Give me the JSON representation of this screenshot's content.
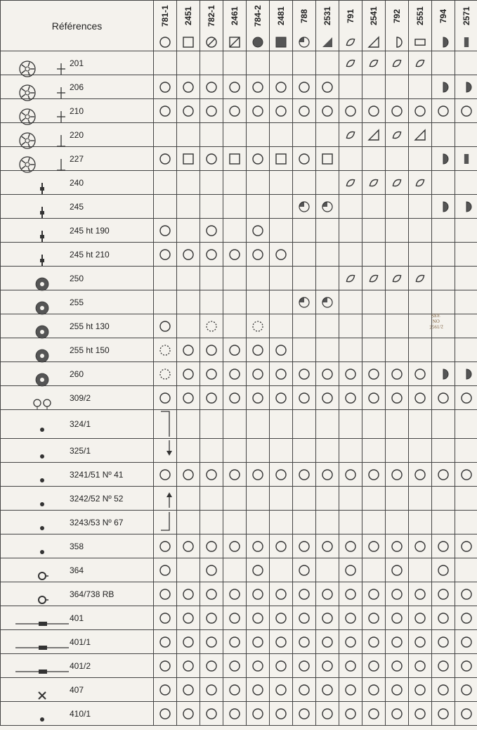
{
  "header_title": "Références",
  "bg_color": "#f4f2ed",
  "stroke_color": "#333333",
  "fill_dark": "#555555",
  "calibers": [
    "781-1",
    "2451",
    "782-1",
    "2461",
    "784-2",
    "2481",
    "788",
    "2531",
    "791",
    "2541",
    "792",
    "2551",
    "794",
    "2571"
  ],
  "header_symbols": [
    "circle",
    "square",
    "circle-slash",
    "square-slash",
    "circle-fill",
    "square-fill",
    "pie-dark",
    "tri-dark",
    "leaf",
    "tri-open",
    "half-open",
    "rect-open",
    "half-dark",
    "bar-dark"
  ],
  "rows": [
    {
      "ref": "201",
      "icon": "wheel-pin",
      "cells": [
        "",
        "",
        "",
        "",
        "",
        "",
        "",
        "",
        "leaf",
        "leaf",
        "leaf",
        "leaf",
        "",
        ""
      ]
    },
    {
      "ref": "206",
      "icon": "wheel-pin",
      "cells": [
        "circle",
        "circle",
        "circle",
        "circle",
        "circle",
        "circle",
        "circle",
        "circle",
        "",
        "",
        "",
        "",
        "half-dark",
        "half-dark"
      ]
    },
    {
      "ref": "210",
      "icon": "wheel-pin",
      "cells": [
        "circle",
        "circle",
        "circle",
        "circle",
        "circle",
        "circle",
        "circle",
        "circle",
        "circle",
        "circle",
        "circle",
        "circle",
        "circle",
        "circle"
      ]
    },
    {
      "ref": "220",
      "icon": "wheel-post",
      "cells": [
        "",
        "",
        "",
        "",
        "",
        "",
        "",
        "",
        "leaf",
        "tri-open",
        "leaf",
        "tri-open",
        "",
        ""
      ]
    },
    {
      "ref": "227",
      "icon": "wheel-post",
      "cells": [
        "circle",
        "square",
        "circle",
        "square",
        "circle",
        "square",
        "circle",
        "square",
        "",
        "",
        "",
        "",
        "half-dark",
        "bar-dark"
      ]
    },
    {
      "ref": "240",
      "icon": "stem",
      "cells": [
        "",
        "",
        "",
        "",
        "",
        "",
        "",
        "",
        "leaf",
        "leaf",
        "leaf",
        "leaf",
        "",
        ""
      ]
    },
    {
      "ref": "245",
      "icon": "stem",
      "cells": [
        "",
        "",
        "",
        "",
        "",
        "",
        "pie-dark",
        "pie-dark",
        "",
        "",
        "",
        "",
        "half-dark",
        "half-dark"
      ]
    },
    {
      "ref": "245 ht 190",
      "icon": "stem",
      "cells": [
        "circle",
        "",
        "circle",
        "",
        "circle",
        "",
        "",
        "",
        "",
        "",
        "",
        "",
        "",
        ""
      ]
    },
    {
      "ref": "245 ht 210",
      "icon": "stem",
      "cells": [
        "circle",
        "circle",
        "circle",
        "circle",
        "circle",
        "circle",
        "",
        "",
        "",
        "",
        "",
        "",
        "",
        ""
      ]
    },
    {
      "ref": "250",
      "icon": "gear",
      "cells": [
        "",
        "",
        "",
        "",
        "",
        "",
        "",
        "",
        "leaf",
        "leaf",
        "leaf",
        "leaf",
        "",
        ""
      ]
    },
    {
      "ref": "255",
      "icon": "gear",
      "cells": [
        "",
        "",
        "",
        "",
        "",
        "",
        "pie-dark",
        "pie-dark",
        "",
        "",
        "",
        "",
        "",
        ""
      ]
    },
    {
      "ref": "255 ht 130",
      "icon": "gear",
      "cells": [
        "circle",
        "",
        "circle-dash",
        "",
        "circle-dash",
        "",
        "",
        "",
        "",
        "",
        "",
        "",
        "",
        ""
      ]
    },
    {
      "ref": "255 ht 150",
      "icon": "gear",
      "cells": [
        "circle-dash",
        "circle",
        "circle",
        "circle",
        "circle",
        "circle",
        "",
        "",
        "",
        "",
        "",
        "",
        "",
        ""
      ]
    },
    {
      "ref": "260",
      "icon": "gear",
      "cells": [
        "circle-dash",
        "circle",
        "circle",
        "circle",
        "circle",
        "circle",
        "circle",
        "circle",
        "circle",
        "circle",
        "circle",
        "circle",
        "half-dark",
        "half-dark"
      ]
    },
    {
      "ref": "309/2",
      "icon": "pair",
      "cells": [
        "circle",
        "circle",
        "circle",
        "circle",
        "circle",
        "circle",
        "circle",
        "circle",
        "circle",
        "circle",
        "circle",
        "circle",
        "circle",
        "circle"
      ]
    },
    {
      "ref": "324/1",
      "icon": "dot",
      "cells": [
        "arrow-down-start",
        "",
        "",
        "",
        "",
        "",
        "",
        "",
        "",
        "",
        "",
        "",
        "",
        ""
      ]
    },
    {
      "ref": "325/1",
      "icon": "dot",
      "cells": [
        "arrow-down-end",
        "",
        "",
        "",
        "",
        "",
        "",
        "",
        "",
        "",
        "",
        "",
        "",
        ""
      ]
    },
    {
      "ref": "3241/51 Nº 41",
      "icon": "dot",
      "cells": [
        "circle",
        "circle",
        "circle",
        "circle",
        "circle",
        "circle",
        "circle",
        "circle",
        "circle",
        "circle",
        "circle",
        "circle",
        "circle",
        "circle"
      ]
    },
    {
      "ref": "3242/52 Nº 52",
      "icon": "dot",
      "cells": [
        "arrow-up-start",
        "",
        "",
        "",
        "",
        "",
        "",
        "",
        "",
        "",
        "",
        "",
        "",
        ""
      ]
    },
    {
      "ref": "3243/53 Nº 67",
      "icon": "dot",
      "cells": [
        "arrow-up-end",
        "",
        "",
        "",
        "",
        "",
        "",
        "",
        "",
        "",
        "",
        "",
        "",
        ""
      ]
    },
    {
      "ref": "358",
      "icon": "dot",
      "cells": [
        "circle",
        "circle",
        "circle",
        "circle",
        "circle",
        "circle",
        "circle",
        "circle",
        "circle",
        "circle",
        "circle",
        "circle",
        "circle",
        "circle"
      ]
    },
    {
      "ref": "364",
      "icon": "ring",
      "cells": [
        "circle",
        "",
        "circle",
        "",
        "circle",
        "",
        "circle",
        "",
        "circle",
        "",
        "circle",
        "",
        "circle",
        ""
      ]
    },
    {
      "ref": "364/738 RB",
      "icon": "ring",
      "cells": [
        "circle",
        "circle",
        "circle",
        "circle",
        "circle",
        "circle",
        "circle",
        "circle",
        "circle",
        "circle",
        "circle",
        "circle",
        "circle",
        "circle"
      ]
    },
    {
      "ref": "401",
      "icon": "stem-long",
      "cells": [
        "circle",
        "circle",
        "circle",
        "circle",
        "circle",
        "circle",
        "circle",
        "circle",
        "circle",
        "circle",
        "circle",
        "circle",
        "circle",
        "circle"
      ]
    },
    {
      "ref": "401/1",
      "icon": "stem-long",
      "cells": [
        "circle",
        "circle",
        "circle",
        "circle",
        "circle",
        "circle",
        "circle",
        "circle",
        "circle",
        "circle",
        "circle",
        "circle",
        "circle",
        "circle"
      ]
    },
    {
      "ref": "401/2",
      "icon": "stem-long",
      "cells": [
        "circle",
        "circle",
        "circle",
        "circle",
        "circle",
        "circle",
        "circle",
        "circle",
        "circle",
        "circle",
        "circle",
        "circle",
        "circle",
        "circle"
      ]
    },
    {
      "ref": "407",
      "icon": "cross",
      "cells": [
        "circle",
        "circle",
        "circle",
        "circle",
        "circle",
        "circle",
        "circle",
        "circle",
        "circle",
        "circle",
        "circle",
        "circle",
        "circle",
        "circle"
      ]
    },
    {
      "ref": "410/1",
      "icon": "dot",
      "cells": [
        "circle",
        "circle",
        "circle",
        "circle",
        "circle",
        "circle",
        "circle",
        "circle",
        "circle",
        "circle",
        "circle",
        "circle",
        "circle",
        "circle"
      ]
    }
  ],
  "annotation": "SEE NO 2561/2"
}
